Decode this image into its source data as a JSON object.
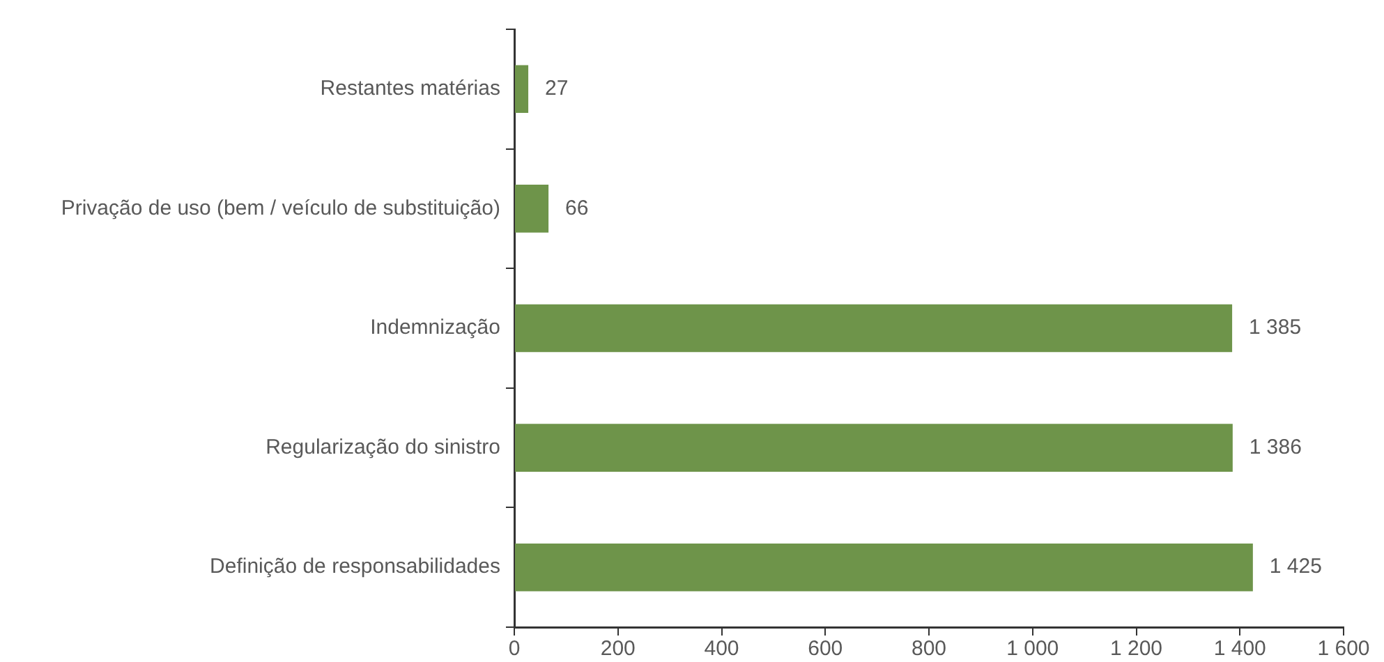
{
  "chart_data": {
    "type": "bar",
    "orientation": "horizontal",
    "categories": [
      "Restantes matérias",
      "Privação de uso (bem / veículo de substituição)",
      "Indemnização",
      "Regularização do sinistro",
      "Definição de responsabilidades"
    ],
    "values": [
      27,
      66,
      1385,
      1386,
      1425
    ],
    "color": "#6e944a",
    "value_labels": [
      "27",
      "66",
      "1 385",
      "1 386",
      "1 425"
    ],
    "xlim": [
      0,
      1600
    ],
    "xticks": [
      0,
      200,
      400,
      600,
      800,
      {
        "value": 1000,
        "label": "1 000"
      },
      {
        "value": 1200,
        "label": "1 200"
      },
      {
        "value": 1400,
        "label": "1 400"
      },
      {
        "value": 1600,
        "label": "1 600"
      }
    ]
  }
}
